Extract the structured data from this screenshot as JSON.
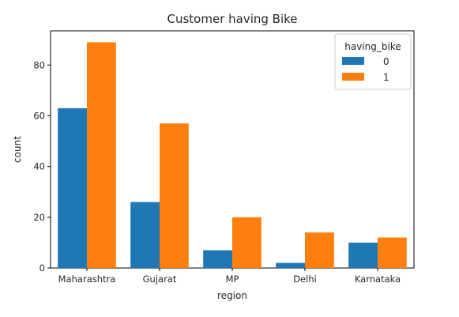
{
  "chart_data": {
    "type": "bar",
    "title": "Customer having Bike",
    "xlabel": "region",
    "ylabel": "count",
    "categories": [
      "Maharashtra",
      "Gujarat",
      "MP",
      "Delhi",
      "Karnataka"
    ],
    "series": [
      {
        "name": "0",
        "values": [
          63,
          26,
          7,
          2,
          10
        ],
        "color": "#1f77b4"
      },
      {
        "name": "1",
        "values": [
          89,
          57,
          20,
          14,
          12
        ],
        "color": "#ff7f0e"
      }
    ],
    "ylim": [
      0,
      93.5
    ],
    "yticks": [
      0,
      20,
      40,
      60,
      80
    ],
    "grid": false,
    "legend": {
      "title": "having_bike",
      "position": "top-right"
    }
  }
}
